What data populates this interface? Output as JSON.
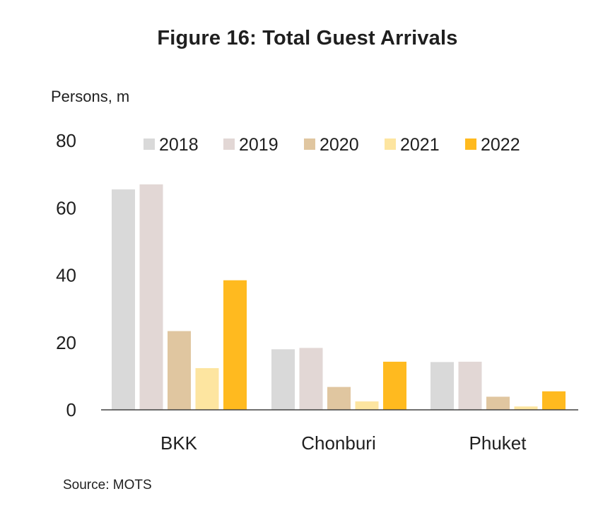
{
  "chart_data": {
    "type": "bar",
    "title": "Figure 16: Total Guest Arrivals",
    "ylabel": "Persons, m",
    "xlabel": "",
    "source": "Source: MOTS",
    "categories": [
      "BKK",
      "Chonburi",
      "Phuket"
    ],
    "yticks": [
      "0",
      "20",
      "40",
      "60",
      "80"
    ],
    "ylim": [
      0,
      80
    ],
    "legend_position": "top",
    "grid": false,
    "series": [
      {
        "name": "2018",
        "color": "#d9d9d9",
        "values": [
          65.5,
          18.0,
          14.2
        ]
      },
      {
        "name": "2019",
        "color": "#e2d7d5",
        "values": [
          67.0,
          18.4,
          14.3
        ]
      },
      {
        "name": "2020",
        "color": "#e0c6a0",
        "values": [
          23.4,
          6.8,
          3.9
        ]
      },
      {
        "name": "2021",
        "color": "#fde5a0",
        "values": [
          12.4,
          2.5,
          1.0
        ]
      },
      {
        "name": "2022",
        "color": "#ffba1f",
        "values": [
          38.5,
          14.3,
          5.5
        ]
      }
    ]
  }
}
